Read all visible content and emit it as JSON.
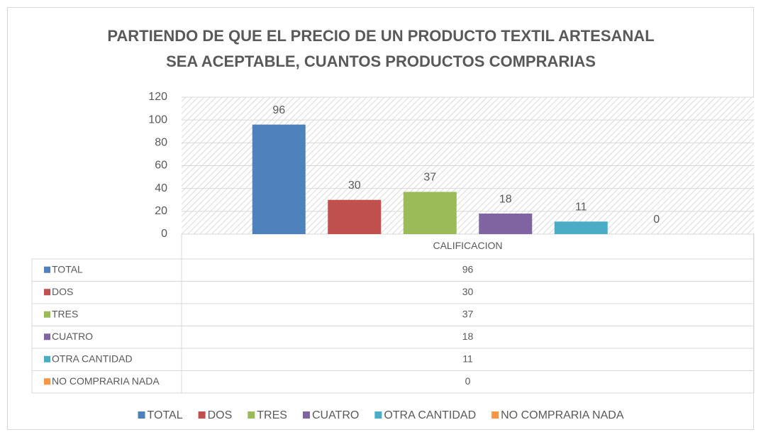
{
  "chart_data": {
    "type": "bar",
    "title": [
      "PARTIENDO DE QUE EL PRECIO DE UN PRODUCTO TEXTIL ARTESANAL",
      "SEA ACEPTABLE, CUANTOS PRODUCTOS COMPRARIAS"
    ],
    "categories": [
      "CALIFICACION"
    ],
    "series": [
      {
        "name": "TOTAL",
        "color": "#4f81bd",
        "values": [
          96
        ]
      },
      {
        "name": "DOS",
        "color": "#c0504d",
        "values": [
          30
        ]
      },
      {
        "name": "TRES",
        "color": "#9bbb59",
        "values": [
          37
        ]
      },
      {
        "name": "CUATRO",
        "color": "#8064a2",
        "values": [
          18
        ]
      },
      {
        "name": "OTRA CANTIDAD",
        "color": "#4bacc6",
        "values": [
          11
        ]
      },
      {
        "name": "NO COMPRARIA NADA",
        "color": "#f79646",
        "values": [
          0
        ]
      }
    ],
    "ylim": [
      0,
      120
    ],
    "yticks": [
      0,
      20,
      40,
      60,
      80,
      100,
      120
    ],
    "grid": true,
    "legend": "bottom",
    "data_table": true
  }
}
